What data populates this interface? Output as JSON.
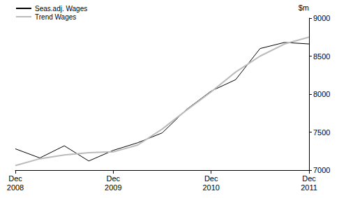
{
  "chart_data": {
    "type": "line",
    "y_label": "$m",
    "categories": [
      "Dec 2008",
      null,
      null,
      null,
      "Dec 2009",
      null,
      null,
      null,
      "Dec 2010",
      null,
      null,
      null,
      "Dec 2011"
    ],
    "series": [
      {
        "name": "Seas.adj. Wages",
        "color": "#000000",
        "values": [
          7280,
          7160,
          7320,
          7120,
          7260,
          7360,
          7490,
          7800,
          8040,
          8190,
          8600,
          8680,
          8660
        ]
      },
      {
        "name": "Trend Wages",
        "color": "#bbbbbb",
        "values": [
          7060,
          7150,
          7200,
          7230,
          7240,
          7330,
          7540,
          7790,
          8030,
          8290,
          8500,
          8660,
          8750
        ]
      }
    ],
    "ylim": [
      7000,
      9000
    ],
    "yticks": [
      7000,
      7500,
      8000,
      8500,
      9000
    ],
    "grid": false,
    "legend": "upper left"
  }
}
